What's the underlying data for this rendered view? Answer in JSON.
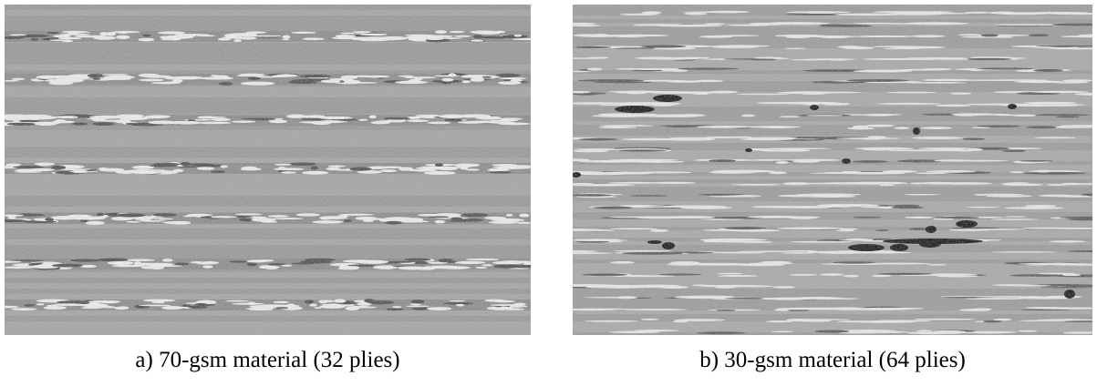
{
  "figure": {
    "panels": [
      {
        "caption": "a) 70-gsm material (32 plies)"
      },
      {
        "caption": "b) 30-gsm material (64 plies)"
      }
    ]
  }
}
